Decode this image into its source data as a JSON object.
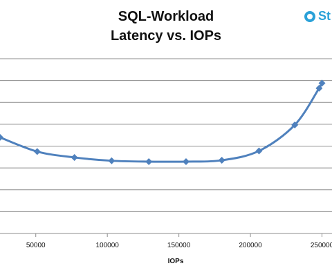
{
  "logo": {
    "text": "St",
    "color": "#2aa1d8"
  },
  "chart_data": {
    "type": "line",
    "title": [
      "SQL-Workload",
      "Latency vs. IOPs"
    ],
    "xlabel": "IOPs",
    "ylabel": "",
    "x_ticks": [
      50000,
      100000,
      150000,
      200000,
      250000
    ],
    "xlim": [
      25000,
      257000
    ],
    "ylim": [
      0,
      8
    ],
    "grid": true,
    "series_color": "#4f81bd",
    "series": [
      {
        "x": [
          25000,
          51000,
          77000,
          103000,
          129000,
          155000,
          180000,
          206000,
          231000,
          248000,
          250000
        ],
        "y": [
          4.4,
          3.75,
          3.48,
          3.33,
          3.29,
          3.29,
          3.35,
          3.78,
          4.97,
          6.65,
          6.88
        ]
      }
    ]
  }
}
